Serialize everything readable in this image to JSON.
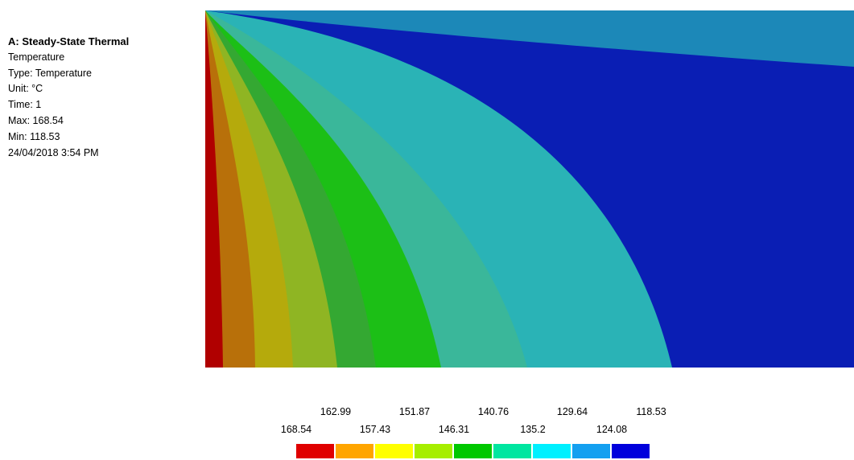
{
  "info": {
    "title": "A: Steady-State Thermal",
    "result": "Temperature",
    "type": "Type: Temperature",
    "unit": "Unit: °C",
    "time": "Time: 1",
    "max": "Max: 168.54",
    "min": "Min: 118.53",
    "timestamp": "24/04/2018 3:54 PM"
  },
  "legend": {
    "upper_labels": [
      "162.99",
      "151.87",
      "140.76",
      "129.64",
      "118.53"
    ],
    "lower_labels": [
      "168.54",
      "157.43",
      "146.31",
      "135.2",
      "124.08"
    ],
    "colors": [
      "#e00000",
      "#ffa500",
      "#ffff00",
      "#a6ee00",
      "#00c800",
      "#00e6a0",
      "#00f0ff",
      "#14a0f0",
      "#0000dc"
    ]
  },
  "contour": {
    "band_colors": [
      "#b00000",
      "#b8700a",
      "#b5aa0c",
      "#8fb523",
      "#34a832",
      "#1cbf16",
      "#3ab79a",
      "#2ab3b6",
      "#1c88b8",
      "#0a1eb4"
    ]
  }
}
